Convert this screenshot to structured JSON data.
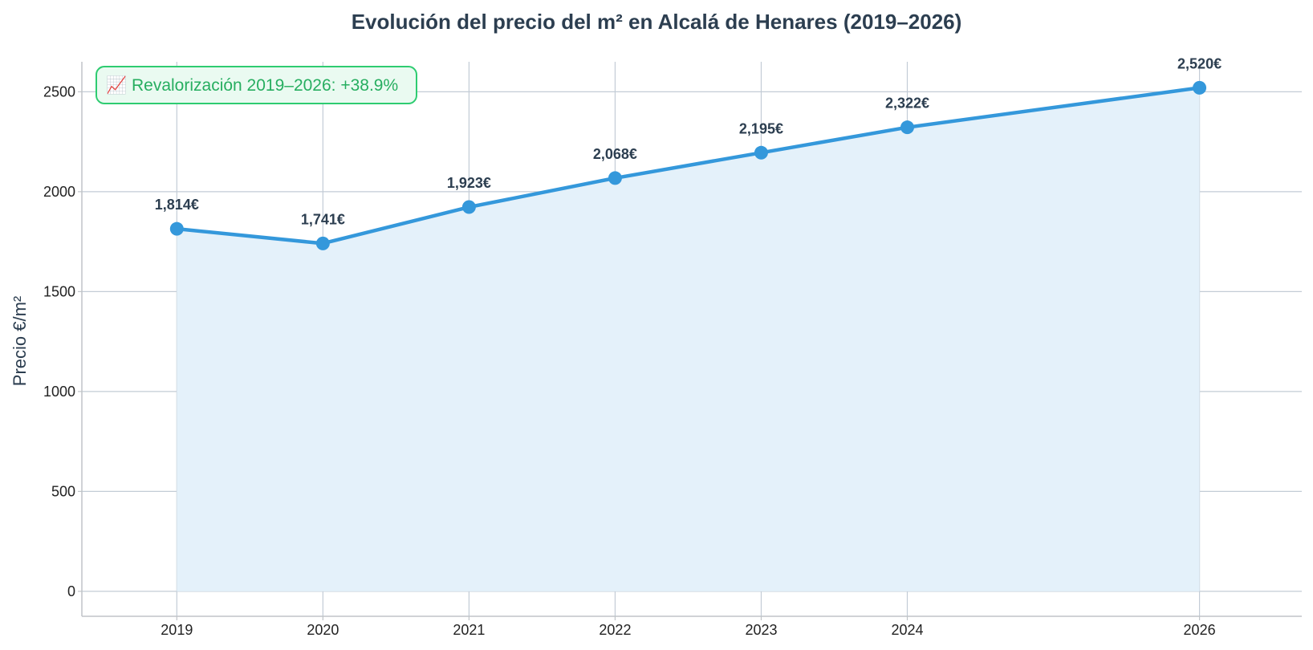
{
  "chart_data": {
    "type": "area",
    "title": "Evolución del precio del m² en Alcalá de Henares (2019–2026)",
    "xlabel": "",
    "ylabel": "Precio €/m²",
    "x": [
      2019,
      2020,
      2021,
      2022,
      2023,
      2024,
      2026
    ],
    "xticks": [
      "2019",
      "2020",
      "2021",
      "2022",
      "2023",
      "2024",
      "2026"
    ],
    "values": [
      1814,
      1741,
      1923,
      2068,
      2195,
      2322,
      2520
    ],
    "data_labels": [
      "1,814€",
      "1,741€",
      "1,923€",
      "2,068€",
      "2,195€",
      "2,322€",
      "2,520€"
    ],
    "yticks": [
      0,
      500,
      1000,
      1500,
      2000,
      2500
    ],
    "ytick_labels": [
      "0",
      "500",
      "1000",
      "1500",
      "2000",
      "2500"
    ],
    "ylim": [
      -125,
      2650
    ],
    "xlim": [
      2018.35,
      2026.7
    ],
    "grid": true,
    "annotation": "📈 Revalorización 2019–2026: +38.9%",
    "colors": {
      "line": "#3498db",
      "fill": "#e4f1fa",
      "grid": "#c3ccd6",
      "annotation_text": "#27ae60",
      "annotation_border": "#2ecc71",
      "annotation_bg": "#eafaf1",
      "text": "#2c3e50"
    }
  }
}
